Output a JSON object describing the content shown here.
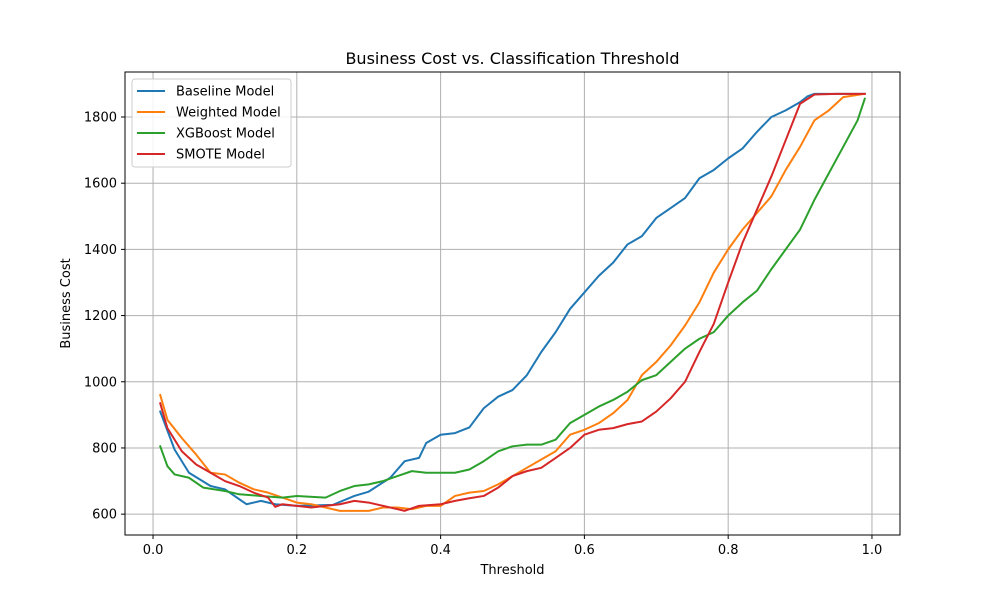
{
  "chart_data": {
    "type": "line",
    "title": "Business Cost vs. Classification Threshold",
    "xlabel": "Threshold",
    "ylabel": "Business Cost",
    "xlim": [
      -0.039,
      1.039
    ],
    "ylim": [
      537,
      1936
    ],
    "xticks": [
      0.0,
      0.2,
      0.4,
      0.6,
      0.8,
      1.0
    ],
    "xtick_labels": [
      "0.0",
      "0.2",
      "0.4",
      "0.6",
      "0.8",
      "1.0"
    ],
    "yticks": [
      600,
      800,
      1000,
      1200,
      1400,
      1600,
      1800
    ],
    "ytick_labels": [
      "600",
      "800",
      "1000",
      "1200",
      "1400",
      "1600",
      "1800"
    ],
    "grid": true,
    "legend_position": "top-left",
    "series": [
      {
        "name": "Baseline Model",
        "color": "#1f77b4",
        "x": [
          0.01,
          0.03,
          0.05,
          0.08,
          0.1,
          0.12,
          0.13,
          0.15,
          0.17,
          0.2,
          0.25,
          0.28,
          0.3,
          0.33,
          0.35,
          0.37,
          0.38,
          0.4,
          0.42,
          0.44,
          0.46,
          0.48,
          0.5,
          0.52,
          0.54,
          0.56,
          0.58,
          0.6,
          0.62,
          0.64,
          0.66,
          0.68,
          0.7,
          0.72,
          0.74,
          0.76,
          0.78,
          0.8,
          0.82,
          0.84,
          0.86,
          0.88,
          0.9,
          0.91,
          0.92,
          0.95,
          0.99
        ],
        "y": [
          910,
          795,
          725,
          685,
          675,
          645,
          630,
          640,
          630,
          625,
          628,
          655,
          668,
          710,
          760,
          770,
          815,
          840,
          845,
          862,
          920,
          955,
          975,
          1020,
          1090,
          1150,
          1220,
          1270,
          1320,
          1360,
          1415,
          1440,
          1495,
          1525,
          1555,
          1615,
          1640,
          1675,
          1705,
          1755,
          1800,
          1820,
          1845,
          1862,
          1870,
          1870,
          1870
        ]
      },
      {
        "name": "Weighted Model",
        "color": "#ff7f0e",
        "x": [
          0.01,
          0.02,
          0.04,
          0.06,
          0.08,
          0.1,
          0.12,
          0.14,
          0.16,
          0.18,
          0.2,
          0.22,
          0.26,
          0.28,
          0.3,
          0.32,
          0.34,
          0.36,
          0.38,
          0.4,
          0.42,
          0.44,
          0.46,
          0.48,
          0.5,
          0.52,
          0.54,
          0.56,
          0.58,
          0.6,
          0.62,
          0.64,
          0.66,
          0.68,
          0.7,
          0.72,
          0.74,
          0.76,
          0.78,
          0.8,
          0.82,
          0.84,
          0.86,
          0.88,
          0.9,
          0.92,
          0.94,
          0.96,
          0.99
        ],
        "y": [
          960,
          885,
          830,
          780,
          725,
          720,
          695,
          675,
          665,
          650,
          635,
          630,
          610,
          610,
          610,
          620,
          620,
          615,
          625,
          625,
          655,
          665,
          670,
          690,
          715,
          740,
          765,
          790,
          840,
          855,
          875,
          905,
          945,
          1020,
          1060,
          1110,
          1170,
          1240,
          1330,
          1400,
          1460,
          1510,
          1560,
          1640,
          1710,
          1790,
          1820,
          1860,
          1870
        ]
      },
      {
        "name": "XGBoost Model",
        "color": "#2ca02c",
        "x": [
          0.01,
          0.02,
          0.03,
          0.05,
          0.07,
          0.1,
          0.12,
          0.15,
          0.18,
          0.2,
          0.24,
          0.26,
          0.28,
          0.3,
          0.32,
          0.34,
          0.36,
          0.38,
          0.4,
          0.42,
          0.44,
          0.46,
          0.48,
          0.5,
          0.52,
          0.54,
          0.56,
          0.58,
          0.6,
          0.62,
          0.64,
          0.66,
          0.68,
          0.7,
          0.72,
          0.74,
          0.76,
          0.78,
          0.8,
          0.82,
          0.84,
          0.86,
          0.88,
          0.9,
          0.92,
          0.94,
          0.96,
          0.98,
          0.99
        ],
        "y": [
          805,
          745,
          720,
          710,
          680,
          670,
          660,
          655,
          650,
          655,
          650,
          670,
          685,
          690,
          700,
          715,
          730,
          725,
          725,
          725,
          735,
          760,
          790,
          805,
          810,
          810,
          825,
          875,
          900,
          925,
          945,
          970,
          1005,
          1020,
          1060,
          1100,
          1130,
          1150,
          1200,
          1240,
          1275,
          1340,
          1400,
          1460,
          1550,
          1630,
          1710,
          1790,
          1855
        ]
      },
      {
        "name": "SMOTE Model",
        "color": "#d62728",
        "x": [
          0.01,
          0.02,
          0.04,
          0.06,
          0.08,
          0.1,
          0.12,
          0.14,
          0.16,
          0.17,
          0.18,
          0.2,
          0.22,
          0.24,
          0.26,
          0.28,
          0.3,
          0.32,
          0.34,
          0.35,
          0.37,
          0.4,
          0.42,
          0.44,
          0.46,
          0.48,
          0.5,
          0.52,
          0.54,
          0.56,
          0.58,
          0.6,
          0.62,
          0.64,
          0.66,
          0.68,
          0.7,
          0.72,
          0.74,
          0.76,
          0.78,
          0.8,
          0.82,
          0.84,
          0.86,
          0.88,
          0.9,
          0.92,
          0.95,
          0.99
        ],
        "y": [
          935,
          860,
          790,
          750,
          725,
          700,
          685,
          665,
          650,
          622,
          630,
          625,
          620,
          625,
          630,
          640,
          635,
          625,
          615,
          610,
          625,
          630,
          640,
          648,
          655,
          680,
          715,
          730,
          740,
          770,
          800,
          840,
          855,
          860,
          872,
          880,
          910,
          950,
          1000,
          1090,
          1175,
          1300,
          1420,
          1520,
          1620,
          1730,
          1840,
          1868,
          1870,
          1870
        ]
      }
    ]
  }
}
